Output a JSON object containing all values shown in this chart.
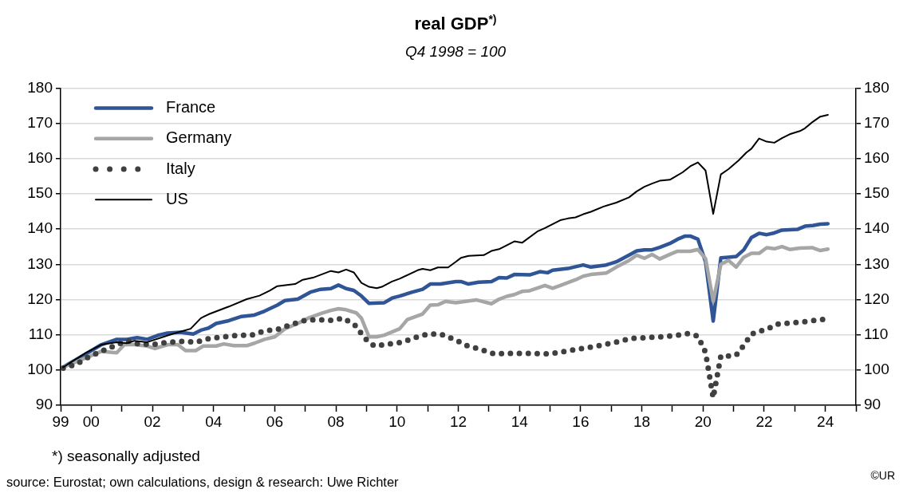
{
  "chart_data": {
    "type": "line",
    "title": "real GDP$^{*)}$",
    "subtitle": "Q4 1998 = 100",
    "annotations": [
      "*) seasonally adjusted",
      "source: Eurostat; own calculations, design & research: Uwe Richter",
      "©UR"
    ],
    "xlim": [
      "1999",
      "2025"
    ],
    "xticks": [
      {
        "value": "1999",
        "label": "99"
      },
      {
        "value": "2000",
        "label": "00"
      },
      {
        "value": "2001",
        "label": null
      },
      {
        "value": "2002",
        "label": "02"
      },
      {
        "value": "2003",
        "label": null
      },
      {
        "value": "2004",
        "label": "04"
      },
      {
        "value": "2005",
        "label": null
      },
      {
        "value": "2006",
        "label": "06"
      },
      {
        "value": "2007",
        "label": null
      },
      {
        "value": "2008",
        "label": "08"
      },
      {
        "value": "2009",
        "label": null
      },
      {
        "value": "2010",
        "label": "10"
      },
      {
        "value": "2011",
        "label": null
      },
      {
        "value": "2012",
        "label": "12"
      },
      {
        "value": "2013",
        "label": null
      },
      {
        "value": "2014",
        "label": "14"
      },
      {
        "value": "2015",
        "label": null
      },
      {
        "value": "2016",
        "label": "16"
      },
      {
        "value": "2017",
        "label": null
      },
      {
        "value": "2018",
        "label": "18"
      },
      {
        "value": "2019",
        "label": null
      },
      {
        "value": "2020",
        "label": "20"
      },
      {
        "value": "2021",
        "label": null
      },
      {
        "value": "2022",
        "label": "22"
      },
      {
        "value": "2023",
        "label": null
      },
      {
        "value": "2024",
        "label": "24"
      },
      {
        "value": "2025",
        "label": null
      }
    ],
    "ylim": [
      90,
      180
    ],
    "yticks": [
      90,
      100,
      110,
      120,
      130,
      140,
      150,
      160,
      170,
      180
    ],
    "y2lim": [
      90,
      180
    ],
    "y2ticks": [
      90,
      100,
      110,
      120,
      130,
      140,
      150,
      160,
      170,
      180
    ],
    "grid": "y",
    "legend": "top left",
    "marker": "none",
    "series": [
      {
        "name": "France",
        "color": "#2f5597",
        "line_style": "solid",
        "x": [
          "1999-02",
          "1999-11",
          "2000-05",
          "2000-11",
          "2001-03",
          "2001-07",
          "2001-11",
          "2002-03",
          "2002-07",
          "2002-12",
          "2003-05",
          "2003-08",
          "2003-11",
          "2004-02",
          "2004-07",
          "2004-12",
          "2005-05",
          "2005-09",
          "2006-02",
          "2006-05",
          "2006-10",
          "2007-03",
          "2007-07",
          "2007-11",
          "2008-02",
          "2008-05",
          "2008-08",
          "2008-11",
          "2009-02",
          "2009-08",
          "2009-11",
          "2010-02",
          "2010-07",
          "2010-11",
          "2011-02",
          "2011-06",
          "2011-12",
          "2012-02",
          "2012-05",
          "2012-09",
          "2013-02",
          "2013-05",
          "2013-08",
          "2013-11",
          "2014-05",
          "2014-09",
          "2014-12",
          "2015-02",
          "2015-08",
          "2016-02",
          "2016-05",
          "2016-11",
          "2017-03",
          "2017-08",
          "2017-11",
          "2018-02",
          "2018-05",
          "2018-08",
          "2018-12",
          "2019-03",
          "2019-06",
          "2019-08",
          "2019-11",
          "2020-02",
          "2020-05",
          "2020-08",
          "2020-11",
          "2021-02",
          "2021-05",
          "2021-08",
          "2021-11",
          "2022-02",
          "2022-05",
          "2022-08",
          "2023-02",
          "2023-05",
          "2023-08",
          "2023-11",
          "2024-02"
        ],
        "values": [
          100.8,
          104.6,
          107.2,
          108.7,
          108.7,
          109.2,
          108.7,
          109.8,
          110.5,
          110.7,
          110.2,
          111.3,
          111.9,
          113.2,
          114,
          115.2,
          115.6,
          116.7,
          118.4,
          119.7,
          120.1,
          122.1,
          122.9,
          123.1,
          124.1,
          123.1,
          122.6,
          121,
          118.9,
          119.1,
          120.4,
          121,
          122.1,
          122.9,
          124.4,
          124.4,
          125.1,
          125.1,
          124.4,
          124.9,
          125.1,
          126.2,
          126.1,
          127.1,
          127,
          127.9,
          127.6,
          128.3,
          128.8,
          129.8,
          129.2,
          129.8,
          130.7,
          132.6,
          133.8,
          134.1,
          134.1,
          134.8,
          135.9,
          137.1,
          138,
          138,
          137.1,
          130.7,
          113.9,
          131.8,
          132,
          132.2,
          134.1,
          137.6,
          138.8,
          138.4,
          138.9,
          139.7,
          139.9,
          140.8,
          141,
          141.4,
          141.5
        ]
      },
      {
        "name": "Germany",
        "color": "#a6a6a6",
        "line_style": "solid",
        "x": [
          "1999-02",
          "1999-11",
          "2000-05",
          "2000-11",
          "2001-02",
          "2001-06",
          "2001-11",
          "2002-02",
          "2002-07",
          "2002-11",
          "2003-02",
          "2003-06",
          "2003-09",
          "2004-02",
          "2004-05",
          "2004-09",
          "2005-02",
          "2005-05",
          "2005-09",
          "2006-01",
          "2006-05",
          "2006-10",
          "2007-02",
          "2007-07",
          "2007-11",
          "2008-02",
          "2008-05",
          "2008-09",
          "2008-11",
          "2009-02",
          "2009-05",
          "2009-08",
          "2010-02",
          "2010-05",
          "2010-11",
          "2011-02",
          "2011-05",
          "2011-08",
          "2011-12",
          "2012-08",
          "2013-02",
          "2013-05",
          "2013-08",
          "2013-11",
          "2014-02",
          "2014-05",
          "2014-11",
          "2015-02",
          "2015-05",
          "2015-11",
          "2016-02",
          "2016-05",
          "2016-11",
          "2017-03",
          "2017-08",
          "2017-11",
          "2018-02",
          "2018-05",
          "2018-08",
          "2018-12",
          "2019-03",
          "2019-08",
          "2019-11",
          "2020-02",
          "2020-05",
          "2020-08",
          "2020-11",
          "2021-02",
          "2021-05",
          "2021-08",
          "2021-11",
          "2022-02",
          "2022-05",
          "2022-08",
          "2022-11",
          "2023-03",
          "2023-08",
          "2023-11",
          "2024-02"
        ],
        "values": [
          100.8,
          103.5,
          105.3,
          104.9,
          107.2,
          107.2,
          106.8,
          106.1,
          107.2,
          107.2,
          105.5,
          105.5,
          106.8,
          106.8,
          107.4,
          106.9,
          106.9,
          107.6,
          108.7,
          109.4,
          111.7,
          113.2,
          114.7,
          116,
          116.9,
          117.4,
          117.1,
          116.2,
          114.7,
          109.4,
          109.4,
          109.9,
          111.7,
          114.3,
          115.9,
          118.4,
          118.5,
          119.5,
          119.1,
          119.9,
          118.8,
          120.1,
          120.9,
          121.4,
          122.3,
          122.5,
          124,
          123.2,
          124,
          125.6,
          126.6,
          127.1,
          127.5,
          129.2,
          131.1,
          132.6,
          131.7,
          132.8,
          131.5,
          132.8,
          133.7,
          133.7,
          134.2,
          131.6,
          119.5,
          130,
          131.1,
          129.2,
          132,
          133.1,
          133.1,
          134.7,
          134.4,
          135,
          134.2,
          134.6,
          134.7,
          133.9,
          134.3
        ]
      },
      {
        "name": "Italy",
        "color": "#404040",
        "line_style": "dotted",
        "x": [
          "1999-02",
          "1999-07",
          "1999-12",
          "2000-05",
          "2000-10",
          "2001-03",
          "2001-08",
          "2002-02",
          "2002-07",
          "2003-01",
          "2003-06",
          "2003-11",
          "2004-05",
          "2004-10",
          "2005-04",
          "2005-09",
          "2006-02",
          "2006-07",
          "2007-01",
          "2007-06",
          "2007-11",
          "2008-04",
          "2008-09",
          "2008-12",
          "2009-04",
          "2009-09",
          "2010-03",
          "2010-08",
          "2011-01",
          "2011-06",
          "2011-12",
          "2012-04",
          "2012-10",
          "2013-03",
          "2013-08",
          "2014-02",
          "2014-07",
          "2015-01",
          "2015-06",
          "2015-12",
          "2016-05",
          "2016-11",
          "2017-04",
          "2017-09",
          "2018-03",
          "2018-08",
          "2019-02",
          "2019-07",
          "2019-11",
          "2020-02",
          "2020-05",
          "2020-08",
          "2020-11",
          "2021-02",
          "2021-05",
          "2021-08",
          "2021-11",
          "2022-02",
          "2022-06",
          "2022-12",
          "2023-05",
          "2023-11",
          "2024-02"
        ],
        "values": [
          100.5,
          101.6,
          103.7,
          105.3,
          106.8,
          108.3,
          107.3,
          107.3,
          107.9,
          108.1,
          107.9,
          108.9,
          109.4,
          109.8,
          109.9,
          111.1,
          111.5,
          112.8,
          114.1,
          114.3,
          114.1,
          114.7,
          112.4,
          109.2,
          106.8,
          107.3,
          107.9,
          109.2,
          110.2,
          110.2,
          108.5,
          107,
          105.8,
          104.6,
          104.7,
          104.7,
          104.7,
          104.6,
          105.2,
          105.9,
          106.5,
          107.3,
          108.1,
          109,
          109.2,
          109.4,
          109.8,
          110.3,
          109.6,
          105,
          92.1,
          104,
          104,
          104.2,
          107,
          110.2,
          111,
          111.5,
          113,
          113.4,
          113.7,
          114.3,
          114.4
        ]
      },
      {
        "name": "US",
        "color": "#000000",
        "line_style": "solid",
        "x": [
          "1999-02",
          "1999-11",
          "2000-05",
          "2000-11",
          "2001-03",
          "2001-06",
          "2001-11",
          "2002-07",
          "2002-12",
          "2003-04",
          "2003-08",
          "2003-11",
          "2004-07",
          "2005-02",
          "2005-07",
          "2005-11",
          "2006-02",
          "2006-09",
          "2006-12",
          "2007-04",
          "2007-11",
          "2008-02",
          "2008-05",
          "2008-08",
          "2008-11",
          "2009-02",
          "2009-05",
          "2009-07",
          "2009-11",
          "2010-02",
          "2010-09",
          "2010-11",
          "2011-02",
          "2011-05",
          "2011-09",
          "2011-12",
          "2012-02",
          "2012-05",
          "2012-11",
          "2013-02",
          "2013-05",
          "2013-11",
          "2014-02",
          "2014-08",
          "2014-11",
          "2015-05",
          "2015-08",
          "2015-11",
          "2016-02",
          "2016-05",
          "2016-10",
          "2017-03",
          "2017-08",
          "2017-11",
          "2018-02",
          "2018-05",
          "2018-08",
          "2018-12",
          "2019-02",
          "2019-05",
          "2019-08",
          "2019-11",
          "2020-02",
          "2020-05",
          "2020-08",
          "2020-11",
          "2021-03",
          "2021-06",
          "2021-08",
          "2021-11",
          "2022-02",
          "2022-05",
          "2022-08",
          "2022-11",
          "2023-03",
          "2023-05",
          "2023-08",
          "2023-11",
          "2024-02"
        ],
        "values": [
          100.8,
          104.9,
          107.2,
          107.9,
          107.6,
          108.3,
          107.9,
          109.8,
          110.9,
          111.7,
          114.7,
          115.8,
          118,
          120.1,
          121.1,
          122.5,
          123.8,
          124.4,
          125.6,
          126.2,
          128.1,
          127.7,
          128.5,
          127.7,
          124.7,
          123.6,
          123.2,
          123.6,
          125.1,
          125.9,
          128.3,
          128.7,
          128.3,
          129.1,
          129.1,
          130.7,
          131.8,
          132.4,
          132.6,
          133.8,
          134.3,
          136.5,
          136.1,
          139.3,
          140.3,
          142.5,
          143,
          143.3,
          144.2,
          144.9,
          146.4,
          147.5,
          149,
          150.7,
          152,
          152.9,
          153.7,
          154,
          154.8,
          156.1,
          157.8,
          158.9,
          156.6,
          144.3,
          155.5,
          157,
          159.5,
          161.7,
          162.8,
          165.7,
          164.8,
          164.5,
          165.8,
          166.9,
          167.8,
          168.6,
          170.4,
          171.9,
          172.4
        ]
      }
    ]
  }
}
